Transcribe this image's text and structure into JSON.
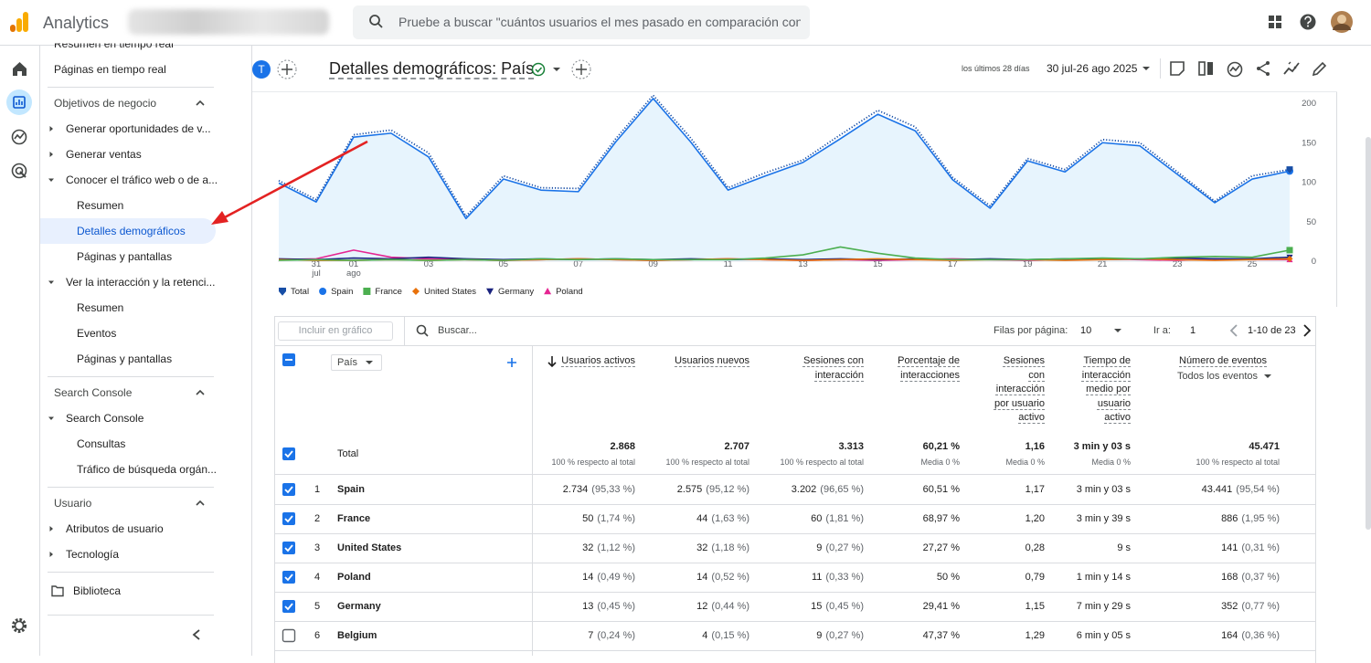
{
  "header": {
    "app_name": "Analytics",
    "search_placeholder": "Pruebe a buscar \"cuántos usuarios el mes pasado en comparación con el ..."
  },
  "sidebar": {
    "sections": [
      {
        "items": [
          {
            "label": "Resumen en tiempo real"
          },
          {
            "label": "Páginas en tiempo real"
          }
        ]
      },
      {
        "title": "Objetivos de negocio",
        "groups": [
          {
            "label": "Generar oportunidades de v..."
          },
          {
            "label": "Generar ventas"
          },
          {
            "label": "Conocer el tráfico web o de a...",
            "items": [
              {
                "label": "Resumen"
              },
              {
                "label": "Detalles demográficos",
                "selected": true
              },
              {
                "label": "Páginas y pantallas"
              }
            ]
          },
          {
            "label": "Ver la interacción y la retenci...",
            "items": [
              {
                "label": "Resumen"
              },
              {
                "label": "Eventos"
              },
              {
                "label": "Páginas y pantallas"
              }
            ]
          }
        ]
      },
      {
        "title": "Search Console",
        "groups": [
          {
            "label": "Search Console",
            "items": [
              {
                "label": "Consultas"
              },
              {
                "label": "Tráfico de búsqueda orgán..."
              }
            ]
          }
        ]
      },
      {
        "title": "Usuario",
        "groups": [
          {
            "label": "Atributos de usuario"
          },
          {
            "label": "Tecnología"
          }
        ]
      }
    ],
    "library": "Biblioteca"
  },
  "toolbar": {
    "avatar_letter": "T",
    "title": "Detalles demográficos: País",
    "date_label": "los últimos 28 días",
    "date_range": "30 jul-26 ago 2025"
  },
  "chart": {
    "type": "line",
    "categories": [
      null,
      "31",
      "01",
      null,
      "03",
      null,
      "05",
      null,
      "07",
      null,
      "09",
      null,
      "11",
      null,
      "13",
      null,
      "15",
      null,
      "17",
      null,
      "19",
      null,
      "21",
      null,
      "23",
      null,
      "25",
      null
    ],
    "sub_labels": [
      null,
      "jul",
      "ago",
      null,
      null,
      null,
      null,
      null,
      null,
      null,
      null,
      null,
      null,
      null,
      null,
      null,
      null,
      null,
      null,
      null,
      null,
      null,
      null,
      null,
      null,
      null,
      null,
      null
    ],
    "ylim": [
      0,
      200
    ],
    "yticks": [
      0,
      50,
      100,
      150,
      200
    ],
    "grid": false,
    "series": [
      {
        "name": "Total",
        "color": "#174ea6",
        "marker": "pin",
        "style": "dotted",
        "values": [
          102,
          78,
          160,
          166,
          137,
          57,
          108,
          93,
          92,
          155,
          210,
          156,
          93,
          112,
          128,
          160,
          191,
          170,
          106,
          70,
          130,
          116,
          154,
          150,
          113,
          76,
          108,
          116
        ]
      },
      {
        "name": "Spain",
        "color": "#1a73e8",
        "marker": "circle",
        "area": true,
        "values": [
          99,
          75,
          157,
          162,
          132,
          54,
          104,
          90,
          88,
          151,
          206,
          151,
          90,
          108,
          125,
          155,
          186,
          165,
          103,
          67,
          127,
          113,
          150,
          146,
          110,
          74,
          104,
          114
        ]
      },
      {
        "name": "France",
        "color": "#4caf50",
        "marker": "square",
        "values": [
          1,
          2,
          1,
          2,
          1,
          2,
          1,
          3,
          2,
          3,
          2,
          2,
          2,
          4,
          8,
          18,
          10,
          4,
          2,
          2,
          2,
          3,
          4,
          3,
          5,
          6,
          5,
          14
        ]
      },
      {
        "name": "United States",
        "color": "#e8710a",
        "marker": "diamond",
        "values": [
          2,
          1,
          1,
          2,
          1,
          2,
          1,
          2,
          3,
          2,
          1,
          2,
          3,
          2,
          1,
          2,
          3,
          2,
          1,
          2,
          2,
          1,
          2,
          3,
          2,
          1,
          2,
          3
        ]
      },
      {
        "name": "Germany",
        "color": "#1a237e",
        "marker": "triangle-down",
        "values": [
          3,
          2,
          4,
          3,
          5,
          3,
          2,
          3,
          2,
          3,
          2,
          3,
          2,
          3,
          2,
          3,
          2,
          3,
          2,
          3,
          2,
          3,
          2,
          3,
          4,
          3,
          3,
          5
        ]
      },
      {
        "name": "Poland",
        "color": "#e52592",
        "marker": "triangle-up",
        "values": [
          2,
          3,
          14,
          5,
          3,
          2,
          1,
          2,
          3,
          2,
          1,
          2,
          3,
          2,
          1,
          2,
          1,
          2,
          3,
          2,
          1,
          2,
          3,
          2,
          1,
          3,
          2,
          2
        ]
      }
    ]
  },
  "table": {
    "toolbar": {
      "include_placeholder": "Incluir en gráfico",
      "search_placeholder": "Buscar...",
      "rows_label": "Filas por página:",
      "rows_value": "10",
      "goto_label": "Ir a:",
      "goto_value": "1",
      "range": "1-10 de 23"
    },
    "dimension": "País",
    "columns": [
      {
        "label": "Usuarios activos"
      },
      {
        "label": "Usuarios nuevos"
      },
      {
        "label": "Sesiones con interacción"
      },
      {
        "label": "Porcentaje de interacciones"
      },
      {
        "label": "Sesiones con interacción por usuario activo"
      },
      {
        "label": "Tiempo de interacción medio por usuario activo"
      },
      {
        "label": "Número de eventos",
        "filter": "Todos los eventos"
      }
    ],
    "total": {
      "label": "Total",
      "checked": true,
      "cells": [
        {
          "value": "2.868",
          "note": "100 % respecto al total"
        },
        {
          "value": "2.707",
          "note": "100 % respecto al total"
        },
        {
          "value": "3.313",
          "note": "100 % respecto al total"
        },
        {
          "value": "60,21 %",
          "note": "Media 0 %"
        },
        {
          "value": "1,16",
          "note": "Media 0 %"
        },
        {
          "value": "3 min y 03 s",
          "note": "Media 0 %"
        },
        {
          "value": "45.471",
          "note": "100 % respecto al total"
        }
      ]
    },
    "rows": [
      {
        "rank": "1",
        "name": "Spain",
        "checked": true,
        "cells": [
          {
            "value": "2.734",
            "share": "(95,33 %)"
          },
          {
            "value": "2.575",
            "share": "(95,12 %)"
          },
          {
            "value": "3.202",
            "share": "(96,65 %)"
          },
          {
            "value": "60,51 %"
          },
          {
            "value": "1,17"
          },
          {
            "value": "3 min y 03 s"
          },
          {
            "value": "43.441",
            "share": "(95,54 %)"
          }
        ]
      },
      {
        "rank": "2",
        "name": "France",
        "checked": true,
        "cells": [
          {
            "value": "50",
            "share": "(1,74 %)"
          },
          {
            "value": "44",
            "share": "(1,63 %)"
          },
          {
            "value": "60",
            "share": "(1,81 %)"
          },
          {
            "value": "68,97 %"
          },
          {
            "value": "1,20"
          },
          {
            "value": "3 min y 39 s"
          },
          {
            "value": "886",
            "share": "(1,95 %)"
          }
        ]
      },
      {
        "rank": "3",
        "name": "United States",
        "checked": true,
        "cells": [
          {
            "value": "32",
            "share": "(1,12 %)"
          },
          {
            "value": "32",
            "share": "(1,18 %)"
          },
          {
            "value": "9",
            "share": "(0,27 %)"
          },
          {
            "value": "27,27 %"
          },
          {
            "value": "0,28"
          },
          {
            "value": "9 s"
          },
          {
            "value": "141",
            "share": "(0,31 %)"
          }
        ]
      },
      {
        "rank": "4",
        "name": "Poland",
        "checked": true,
        "cells": [
          {
            "value": "14",
            "share": "(0,49 %)"
          },
          {
            "value": "14",
            "share": "(0,52 %)"
          },
          {
            "value": "11",
            "share": "(0,33 %)"
          },
          {
            "value": "50 %"
          },
          {
            "value": "0,79"
          },
          {
            "value": "1 min y 14 s"
          },
          {
            "value": "168",
            "share": "(0,37 %)"
          }
        ]
      },
      {
        "rank": "5",
        "name": "Germany",
        "checked": true,
        "cells": [
          {
            "value": "13",
            "share": "(0,45 %)"
          },
          {
            "value": "12",
            "share": "(0,44 %)"
          },
          {
            "value": "15",
            "share": "(0,45 %)"
          },
          {
            "value": "29,41 %"
          },
          {
            "value": "1,15"
          },
          {
            "value": "7 min y 29 s"
          },
          {
            "value": "352",
            "share": "(0,77 %)"
          }
        ]
      },
      {
        "rank": "6",
        "name": "Belgium",
        "checked": false,
        "cells": [
          {
            "value": "7",
            "share": "(0,24 %)"
          },
          {
            "value": "4",
            "share": "(0,15 %)"
          },
          {
            "value": "9",
            "share": "(0,27 %)"
          },
          {
            "value": "47,37 %"
          },
          {
            "value": "1,29"
          },
          {
            "value": "6 min y 05 s"
          },
          {
            "value": "164",
            "share": "(0,36 %)"
          }
        ]
      }
    ]
  }
}
